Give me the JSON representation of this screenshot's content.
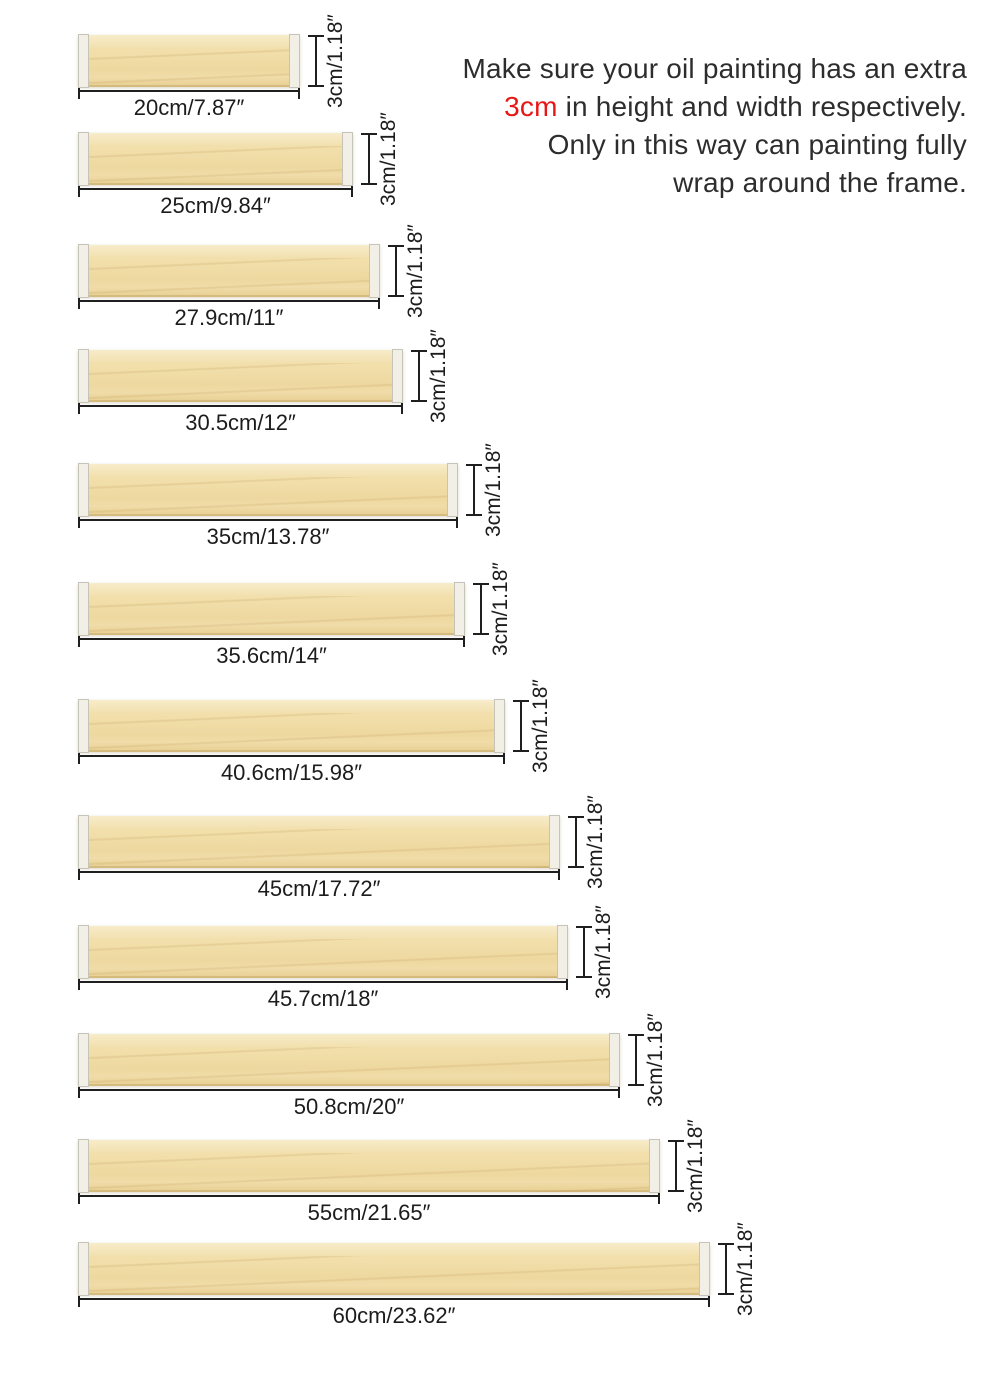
{
  "note": {
    "line1": "Make sure your oil painting has an extra",
    "line2_highlight": "3cm",
    "line2_rest": " in height and width respectively.",
    "line3": "Only in this way can painting fully",
    "line4": "wrap around the frame.",
    "highlight_color": "#e81717",
    "text_color": "#2d2d2d"
  },
  "bars": [
    {
      "cm": 20,
      "width_label": "20cm/7.87″",
      "height_label": "3cm/1.18″"
    },
    {
      "cm": 25,
      "width_label": "25cm/9.84″",
      "height_label": "3cm/1.18″"
    },
    {
      "cm": 27.9,
      "width_label": "27.9cm/11″",
      "height_label": "3cm/1.18″"
    },
    {
      "cm": 30.5,
      "width_label": "30.5cm/12″",
      "height_label": "3cm/1.18″"
    },
    {
      "cm": 35,
      "width_label": "35cm/13.78″",
      "height_label": "3cm/1.18″"
    },
    {
      "cm": 35.6,
      "width_label": "35.6cm/14″",
      "height_label": "3cm/1.18″"
    },
    {
      "cm": 40.6,
      "width_label": "40.6cm/15.98″",
      "height_label": "3cm/1.18″"
    },
    {
      "cm": 45,
      "width_label": "45cm/17.72″",
      "height_label": "3cm/1.18″"
    },
    {
      "cm": 45.7,
      "width_label": "45.7cm/18″",
      "height_label": "3cm/1.18″"
    },
    {
      "cm": 50.8,
      "width_label": "50.8cm/20″",
      "height_label": "3cm/1.18″"
    },
    {
      "cm": 55,
      "width_label": "55cm/21.65″",
      "height_label": "3cm/1.18″"
    },
    {
      "cm": 60,
      "width_label": "60cm/23.62″",
      "height_label": "3cm/1.18″"
    }
  ],
  "colors": {
    "wood_light": "#f4e5bb",
    "wood_mid": "#efdaa6",
    "groove": "#cfa661",
    "cap": "#f2efe6",
    "dimension_line": "#1f1f1f"
  }
}
